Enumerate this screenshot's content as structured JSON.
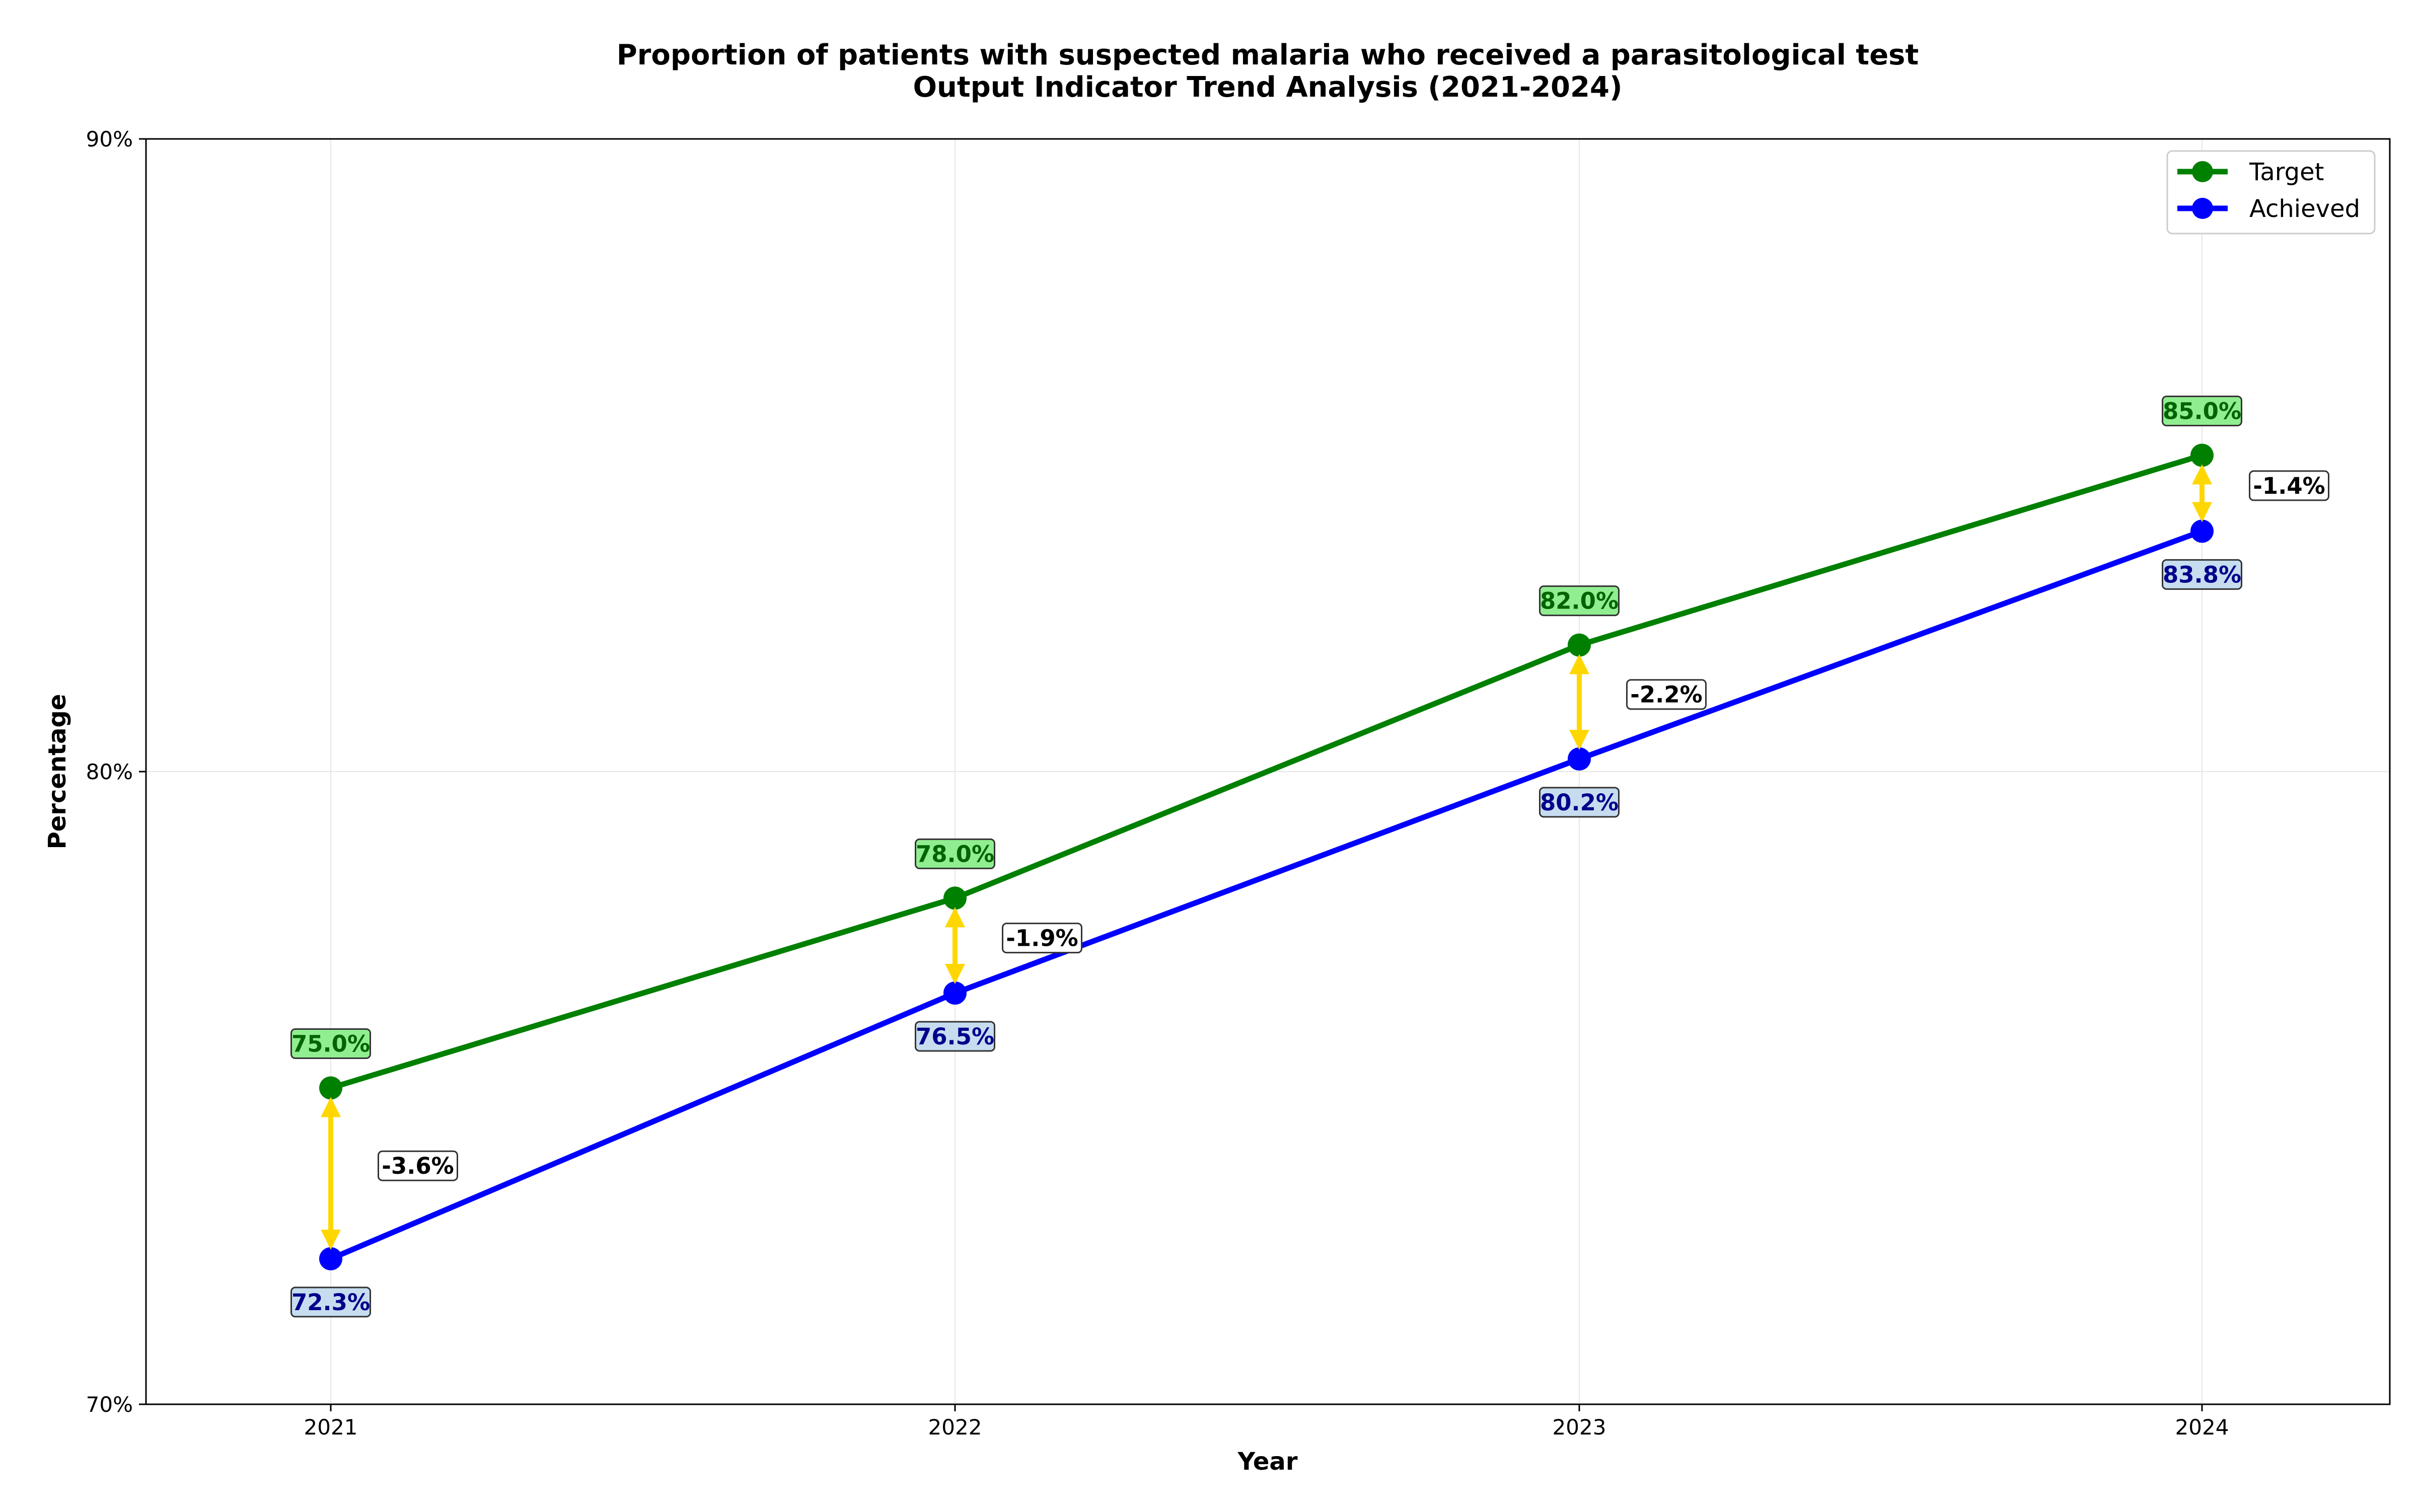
{
  "chart_data": {
    "type": "line",
    "title": "Proportion of patients with suspected malaria who received a parasitological test",
    "subtitle": "Output Indicator Trend Analysis (2021-2024)",
    "xlabel": "Year",
    "ylabel": "Percentage",
    "categories": [
      "2021",
      "2022",
      "2023",
      "2024"
    ],
    "ylim": [
      70,
      90
    ],
    "yticks": [
      70,
      80,
      90
    ],
    "ytick_labels": [
      "70%",
      "80%",
      "90%"
    ],
    "grid": true,
    "legend_position": "top-right",
    "series": [
      {
        "name": "Target",
        "color": "#008000",
        "values": [
          75.0,
          78.0,
          82.0,
          85.0
        ],
        "labels": [
          "75.0%",
          "78.0%",
          "82.0%",
          "85.0%"
        ],
        "label_bg": "#90EE90",
        "label_color": "#006400"
      },
      {
        "name": "Achieved",
        "color": "#0000FF",
        "values": [
          72.3,
          76.5,
          80.2,
          83.8
        ],
        "labels": [
          "72.3%",
          "76.5%",
          "80.2%",
          "83.8%"
        ],
        "label_bg": "#C6DDF0",
        "label_color": "#00008B"
      }
    ],
    "gaps": {
      "values": [
        -2.7,
        -1.5,
        -1.8,
        -1.2
      ],
      "labels": [
        "-3.6%",
        "-1.9%",
        "-2.2%",
        "-1.4%"
      ],
      "arrow_color": "#FFD700"
    }
  }
}
